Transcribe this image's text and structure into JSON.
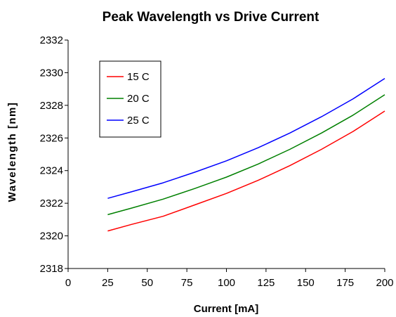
{
  "chart_data": {
    "type": "line",
    "title": "Peak Wavelength vs Drive Current",
    "xlabel": "Current [mA]",
    "ylabel": "Wavelength [nm]",
    "xlim": [
      0,
      200
    ],
    "ylim": [
      2318,
      2332
    ],
    "xticks": [
      0,
      25,
      50,
      75,
      100,
      125,
      150,
      175,
      200
    ],
    "yticks": [
      2318,
      2320,
      2322,
      2324,
      2326,
      2328,
      2330,
      2332
    ],
    "grid": false,
    "legend_position": "top-left",
    "x": [
      25,
      40,
      60,
      80,
      100,
      120,
      140,
      160,
      180,
      200
    ],
    "series": [
      {
        "name": "15 C",
        "color": "#ff0000",
        "values": [
          2320.3,
          2320.7,
          2321.2,
          2321.9,
          2322.6,
          2323.4,
          2324.3,
          2325.3,
          2326.4,
          2327.65
        ]
      },
      {
        "name": "20 C",
        "color": "#008000",
        "values": [
          2321.3,
          2321.7,
          2322.25,
          2322.9,
          2323.6,
          2324.4,
          2325.3,
          2326.3,
          2327.4,
          2328.65
        ]
      },
      {
        "name": "25 C",
        "color": "#0000ff",
        "values": [
          2322.3,
          2322.7,
          2323.25,
          2323.9,
          2324.6,
          2325.4,
          2326.3,
          2327.3,
          2328.4,
          2329.65
        ]
      }
    ]
  }
}
